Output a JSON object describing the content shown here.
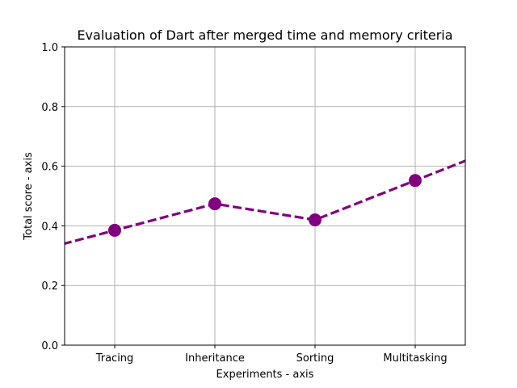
{
  "chart_data": {
    "type": "line",
    "title": "Evaluation of Dart after merged time and memory criteria",
    "xlabel": "Experiments - axis",
    "ylabel": "Total score - axis",
    "categories": [
      "Tracing",
      "Inheritance",
      "Sorting",
      "Multitasking"
    ],
    "series": [
      {
        "values": [
          0.385,
          0.474,
          0.42,
          0.552
        ],
        "color": "#800080",
        "line_style": "dashed",
        "marker": "circle"
      }
    ],
    "ylim": [
      0.0,
      1.0
    ],
    "xlim": [
      -0.5,
      3.5
    ],
    "yticks": [
      "0.0",
      "0.2",
      "0.4",
      "0.6",
      "0.8",
      "1.0"
    ],
    "grid": true
  }
}
